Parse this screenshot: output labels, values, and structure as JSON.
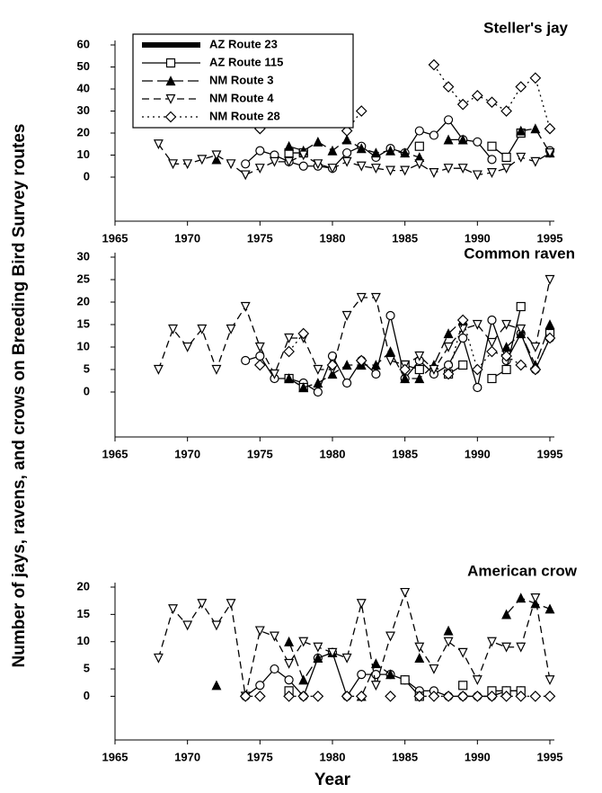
{
  "ylabel": "Number of jays, ravens, and crows on Breeding Bird Survey routes",
  "xlabel": "Year",
  "chart_data": [
    {
      "type": "line",
      "title": "Steller's jay",
      "legend": "upper left",
      "x": [
        1968,
        1969,
        1970,
        1971,
        1972,
        1973,
        1974,
        1975,
        1976,
        1977,
        1978,
        1979,
        1980,
        1981,
        1982,
        1983,
        1984,
        1985,
        1986,
        1987,
        1988,
        1989,
        1990,
        1991,
        1992,
        1993,
        1994,
        1995
      ],
      "xlim": [
        1965,
        1995
      ],
      "xticks": [
        1965,
        1970,
        1975,
        1980,
        1985,
        1990,
        1995
      ],
      "ylim": [
        -20,
        60
      ],
      "yticks": [
        0,
        10,
        20,
        30,
        40,
        50,
        60
      ],
      "series": [
        {
          "name": "AZ Route 23",
          "color": "#000000",
          "marker": "circle",
          "linestyle": "solid",
          "values": [
            null,
            null,
            null,
            null,
            null,
            null,
            6,
            12,
            10,
            7,
            5,
            5,
            4,
            11,
            14,
            9,
            13,
            11,
            21,
            19,
            26,
            17,
            16,
            8,
            null,
            null,
            null,
            12
          ]
        },
        {
          "name": "AZ Route 115",
          "color": "#000000",
          "marker": "square",
          "linestyle": "solid",
          "values": [
            null,
            null,
            null,
            null,
            null,
            null,
            null,
            null,
            null,
            11,
            11,
            null,
            null,
            null,
            null,
            null,
            null,
            null,
            14,
            null,
            null,
            null,
            null,
            14,
            9,
            20,
            null,
            null
          ]
        },
        {
          "name": "NM Route 3",
          "color": "#000000",
          "marker": "triangle",
          "linestyle": "longdash",
          "values": [
            null,
            null,
            null,
            null,
            8,
            null,
            null,
            null,
            null,
            14,
            12,
            16,
            12,
            17,
            13,
            11,
            12,
            11,
            9,
            null,
            17,
            17,
            null,
            null,
            null,
            21,
            22,
            11
          ]
        },
        {
          "name": "NM Route 4",
          "color": "#000000",
          "marker": "triangle-down",
          "linestyle": "dash",
          "values": [
            15,
            6,
            6,
            8,
            10,
            6,
            1,
            4,
            7,
            7,
            10,
            6,
            4,
            7,
            5,
            4,
            3,
            3,
            6,
            2,
            4,
            4,
            1,
            2,
            4,
            9,
            7,
            11
          ]
        },
        {
          "name": "NM Route 28",
          "color": "#000000",
          "marker": "diamond",
          "linestyle": "dotted",
          "values": [
            null,
            null,
            null,
            null,
            null,
            null,
            null,
            22,
            null,
            null,
            null,
            null,
            null,
            21,
            30,
            null,
            null,
            null,
            null,
            51,
            41,
            33,
            37,
            34,
            30,
            41,
            45,
            22
          ]
        }
      ]
    },
    {
      "type": "line",
      "title": "Common raven",
      "x": [
        1968,
        1969,
        1970,
        1971,
        1972,
        1973,
        1974,
        1975,
        1976,
        1977,
        1978,
        1979,
        1980,
        1981,
        1982,
        1983,
        1984,
        1985,
        1986,
        1987,
        1988,
        1989,
        1990,
        1991,
        1992,
        1993,
        1994,
        1995
      ],
      "xlim": [
        1965,
        1995
      ],
      "xticks": [
        1965,
        1970,
        1975,
        1980,
        1985,
        1990,
        1995
      ],
      "ylim": [
        -10,
        30
      ],
      "yticks": [
        0,
        5,
        10,
        15,
        20,
        25,
        30
      ],
      "series": [
        {
          "name": "AZ Route 23",
          "color": "#000000",
          "marker": "circle",
          "linestyle": "solid",
          "values": [
            null,
            null,
            null,
            null,
            null,
            null,
            7,
            8,
            3,
            3,
            2,
            0,
            8,
            2,
            7,
            4,
            17,
            3,
            7,
            4,
            6,
            12,
            1,
            16,
            7,
            13,
            5,
            12
          ]
        },
        {
          "name": "AZ Route 115",
          "color": "#000000",
          "marker": "square",
          "linestyle": "solid",
          "values": [
            null,
            null,
            null,
            null,
            null,
            null,
            null,
            null,
            null,
            3,
            1,
            null,
            null,
            null,
            null,
            null,
            null,
            6,
            5,
            null,
            4,
            6,
            null,
            3,
            5,
            19,
            null,
            13
          ]
        },
        {
          "name": "NM Route 3",
          "color": "#000000",
          "marker": "triangle",
          "linestyle": "longdash",
          "values": [
            null,
            null,
            null,
            null,
            null,
            null,
            null,
            null,
            null,
            3,
            1,
            2,
            4,
            6,
            6,
            6,
            9,
            3,
            3,
            6,
            13,
            16,
            null,
            null,
            10,
            13,
            6,
            15
          ]
        },
        {
          "name": "NM Route 4",
          "color": "#000000",
          "marker": "triangle-down",
          "linestyle": "dash",
          "values": [
            5,
            14,
            10,
            14,
            5,
            14,
            19,
            10,
            4,
            12,
            12,
            5,
            5,
            17,
            21,
            21,
            7,
            6,
            8,
            5,
            10,
            14,
            15,
            11,
            15,
            14,
            10,
            25
          ]
        },
        {
          "name": "NM Route 28",
          "color": "#000000",
          "marker": "diamond",
          "linestyle": "dotted",
          "values": [
            null,
            null,
            null,
            null,
            null,
            null,
            null,
            6,
            null,
            9,
            13,
            null,
            6,
            null,
            7,
            null,
            null,
            5,
            null,
            null,
            4,
            16,
            5,
            9,
            8,
            6,
            5,
            12
          ]
        }
      ]
    },
    {
      "type": "line",
      "title": "American crow",
      "x": [
        1968,
        1969,
        1970,
        1971,
        1972,
        1973,
        1974,
        1975,
        1976,
        1977,
        1978,
        1979,
        1980,
        1981,
        1982,
        1983,
        1984,
        1985,
        1986,
        1987,
        1988,
        1989,
        1990,
        1991,
        1992,
        1993,
        1994,
        1995
      ],
      "xlim": [
        1965,
        1995
      ],
      "xticks": [
        1965,
        1970,
        1975,
        1980,
        1985,
        1990,
        1995
      ],
      "ylim": [
        -8,
        20
      ],
      "yticks": [
        0,
        5,
        10,
        15,
        20
      ],
      "series": [
        {
          "name": "AZ Route 23",
          "color": "#000000",
          "marker": "circle",
          "linestyle": "solid",
          "values": [
            null,
            null,
            null,
            null,
            null,
            null,
            0,
            2,
            5,
            3,
            0,
            7,
            8,
            0,
            4,
            4,
            4,
            3,
            1,
            1,
            0,
            0,
            0,
            0,
            1,
            1,
            null,
            null
          ]
        },
        {
          "name": "AZ Route 115",
          "color": "#000000",
          "marker": "square",
          "linestyle": "solid",
          "values": [
            null,
            null,
            null,
            null,
            null,
            null,
            null,
            null,
            null,
            1,
            null,
            null,
            null,
            null,
            null,
            null,
            null,
            3,
            0,
            null,
            null,
            2,
            null,
            1,
            1,
            1,
            null,
            null
          ]
        },
        {
          "name": "NM Route 3",
          "color": "#000000",
          "marker": "triangle",
          "linestyle": "longdash",
          "values": [
            null,
            null,
            null,
            null,
            2,
            null,
            null,
            null,
            null,
            10,
            3,
            7,
            8,
            null,
            0,
            6,
            4,
            null,
            7,
            null,
            12,
            null,
            null,
            null,
            15,
            18,
            17,
            16
          ]
        },
        {
          "name": "NM Route 4",
          "color": "#000000",
          "marker": "triangle-down",
          "linestyle": "dash",
          "values": [
            7,
            16,
            13,
            17,
            13,
            17,
            0,
            12,
            11,
            6,
            10,
            9,
            8,
            7,
            17,
            2,
            11,
            19,
            9,
            5,
            10,
            8,
            3,
            10,
            9,
            9,
            18,
            3
          ]
        },
        {
          "name": "NM Route 28",
          "color": "#000000",
          "marker": "diamond",
          "linestyle": "dotted",
          "values": [
            null,
            null,
            null,
            null,
            null,
            null,
            0,
            0,
            null,
            0,
            0,
            0,
            null,
            0,
            0,
            null,
            0,
            null,
            0,
            0,
            0,
            0,
            0,
            0,
            0,
            0,
            0,
            0
          ]
        }
      ]
    }
  ]
}
